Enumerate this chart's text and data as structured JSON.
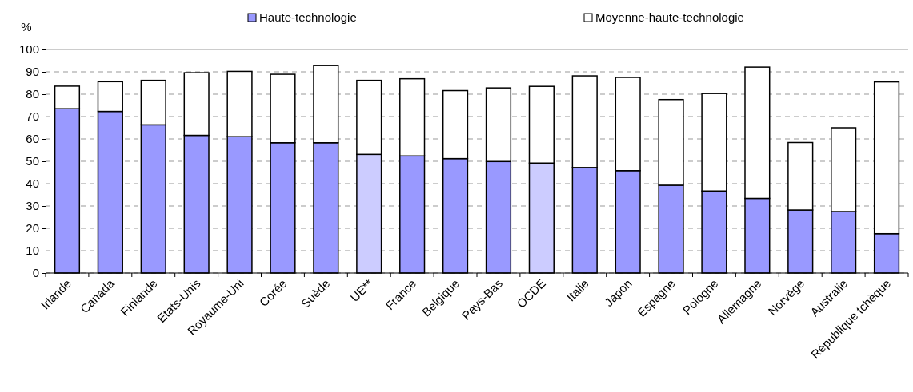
{
  "chart_data": {
    "type": "bar",
    "stacked": true,
    "ylabel": "%",
    "categories": [
      "Irlande",
      "Canada",
      "Finlande",
      "Etats-Unis",
      "Royaume-Uni",
      "Corée",
      "Suède",
      "UE**",
      "France",
      "Belgique",
      "Pays-Bas",
      "OCDE",
      "Italie",
      "Japon",
      "Espagne",
      "Pologne",
      "Allemagne",
      "Norvège",
      "Australie",
      "République tchèque"
    ],
    "series": [
      {
        "name": "Haute-technologie",
        "color": "#9999ff",
        "colors": [
          "#9999ff",
          "#9999ff",
          "#9999ff",
          "#9999ff",
          "#9999ff",
          "#9999ff",
          "#9999ff",
          "#ccccff",
          "#9999ff",
          "#9999ff",
          "#9999ff",
          "#ccccff",
          "#9999ff",
          "#9999ff",
          "#9999ff",
          "#9999ff",
          "#9999ff",
          "#9999ff",
          "#9999ff",
          "#9999ff"
        ],
        "values": [
          73.5,
          72.3,
          66.3,
          61.6,
          61.0,
          58.3,
          58.3,
          53.1,
          52.4,
          51.2,
          49.9,
          49.2,
          47.2,
          45.8,
          39.3,
          36.7,
          33.4,
          28.2,
          27.5,
          17.6
        ]
      },
      {
        "name": "Moyenne-haute-technologie",
        "color": "#ffffff",
        "values": [
          10.1,
          13.3,
          19.9,
          28.0,
          29.2,
          30.6,
          34.5,
          33.1,
          34.5,
          30.4,
          32.9,
          34.3,
          41.0,
          41.7,
          38.3,
          43.6,
          58.7,
          30.2,
          37.5,
          67.9
        ]
      }
    ],
    "ylim": [
      0,
      100
    ],
    "yticks": [
      0,
      10,
      20,
      30,
      40,
      50,
      60,
      70,
      80,
      90,
      100
    ],
    "grid": "y",
    "legend": "top"
  }
}
